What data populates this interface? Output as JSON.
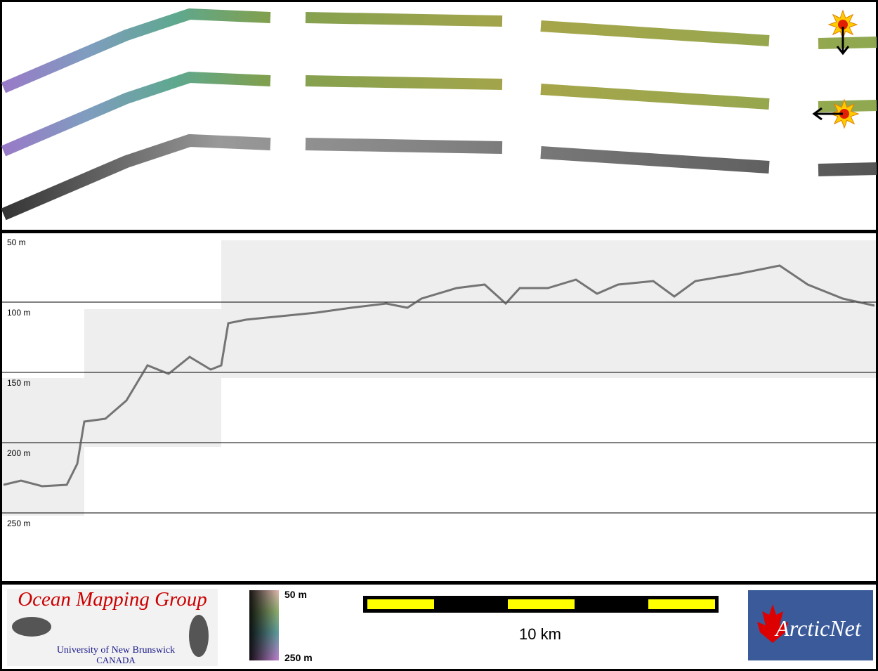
{
  "profile": {
    "depth_labels": [
      "50 m",
      "100 m",
      "150 m",
      "200 m",
      "250 m"
    ]
  },
  "footer": {
    "logo_left": {
      "title": "Ocean Mapping Group",
      "line1": "University of New Brunswick",
      "line2": "CANADA"
    },
    "colorbar": {
      "top": "50 m",
      "bottom": "250 m"
    },
    "scale_bar": {
      "label": "10 km"
    },
    "logo_right": {
      "text": "ArcticNet"
    }
  }
}
